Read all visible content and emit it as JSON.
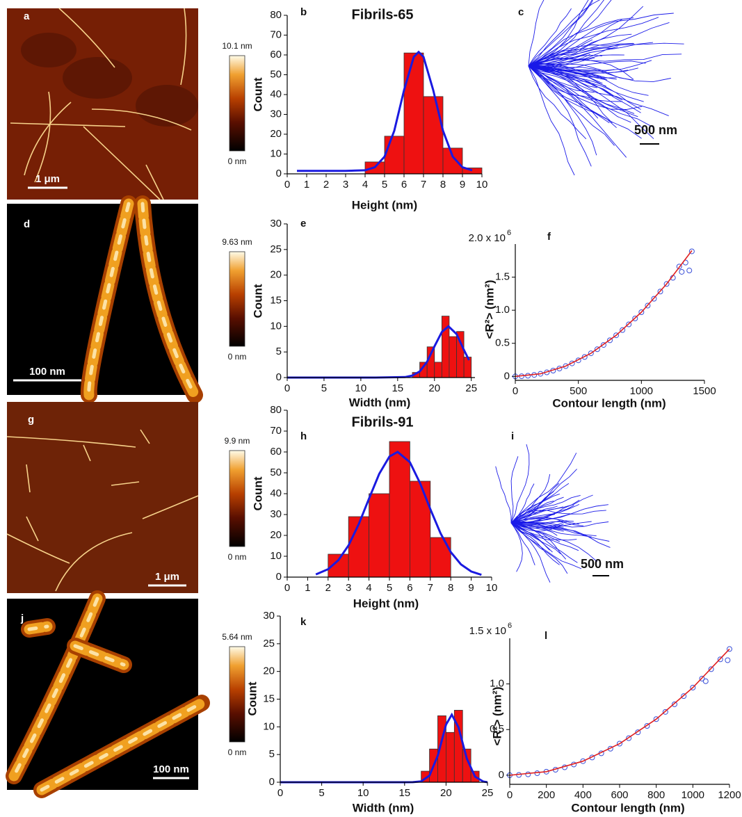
{
  "images": [
    {
      "label": "a",
      "scale_bar": "1 μm",
      "colorbar_max": "10.1 nm",
      "colorbar_min": "0 nm"
    },
    {
      "label": "d",
      "scale_bar": "100 nm",
      "colorbar_max": "9.63 nm",
      "colorbar_min": "0 nm"
    },
    {
      "label": "g",
      "scale_bar": "1 μm",
      "colorbar_max": "9.9 nm",
      "colorbar_min": "0 nm"
    },
    {
      "label": "j",
      "scale_bar": "100 nm",
      "colorbar_max": "5.64 nm",
      "colorbar_min": "0 nm"
    }
  ],
  "traces": [
    {
      "label": "c",
      "scale_bar": "500 nm"
    },
    {
      "label": "i",
      "scale_bar": "500 nm"
    }
  ],
  "chart_data": [
    {
      "type": "histogram",
      "panel_label": "b",
      "title": "Fibrils-65",
      "x_label": "Height (nm)",
      "y_label": "Count",
      "bins": [
        4,
        5,
        6,
        7,
        8,
        9,
        10
      ],
      "values": [
        6,
        19,
        61,
        39,
        13,
        3
      ],
      "color": "#ee1111",
      "fit": {
        "color": "#1a1ae0",
        "x": [
          0.5,
          1,
          2,
          3,
          4,
          4.5,
          5,
          5.5,
          6,
          6.5,
          6.75,
          7,
          7.5,
          8,
          8.5,
          9,
          9.5
        ],
        "values": [
          1.5,
          1.5,
          1.5,
          1.5,
          1.8,
          3.3,
          8.7,
          21.8,
          42.2,
          59,
          61.5,
          59,
          42.2,
          21.8,
          8.7,
          3.3,
          1.8
        ]
      },
      "xlim": [
        0,
        10
      ],
      "xticks": [
        0,
        1,
        2,
        3,
        4,
        5,
        6,
        7,
        8,
        9,
        10
      ],
      "ylim": [
        0,
        80
      ],
      "yticks": [
        0,
        10,
        20,
        30,
        40,
        50,
        60,
        70,
        80
      ]
    },
    {
      "type": "histogram",
      "panel_label": "e",
      "x_label": "Width (nm)",
      "y_label": "Count",
      "bins": [
        17,
        18,
        19,
        20,
        21,
        22,
        23,
        24,
        25
      ],
      "values": [
        1,
        3,
        6,
        3,
        12,
        8,
        9,
        4
      ],
      "color": "#ee1111",
      "fit": {
        "color": "#1a1ae0",
        "x": [
          0,
          4,
          8,
          12,
          16,
          17,
          18,
          19,
          20,
          21,
          21.9,
          23,
          24,
          24.7
        ],
        "values": [
          0,
          0,
          0,
          0,
          0.1,
          0.4,
          1.2,
          3.1,
          6.1,
          8.9,
          10,
          8.5,
          5.4,
          3.4
        ]
      },
      "xlim": [
        0,
        25.5
      ],
      "xticks": [
        0,
        5,
        10,
        15,
        20,
        25
      ],
      "ylim": [
        0,
        30
      ],
      "yticks": [
        0,
        5,
        10,
        15,
        20,
        25,
        30
      ]
    },
    {
      "type": "scatter",
      "panel_label": "f",
      "x_label": "Contour length (nm)",
      "y_label": "<R²> (nm²)",
      "y_scale_label": "2.0 x 10",
      "y_scale_exponent": "6",
      "points": {
        "color": "#3a4fd8",
        "x": [
          0,
          50,
          100,
          150,
          200,
          250,
          300,
          350,
          400,
          450,
          500,
          550,
          600,
          650,
          700,
          750,
          800,
          850,
          900,
          950,
          1000,
          1050,
          1100,
          1150,
          1200,
          1250,
          1300,
          1350,
          1400,
          1320,
          1380
        ],
        "values": [
          0,
          2400,
          9700,
          21800,
          38800,
          60600,
          87300,
          118800,
          155200,
          196400,
          242500,
          293400,
          349200,
          409800,
          475300,
          545600,
          620800,
          700800,
          785700,
          875400,
          970000,
          1069400,
          1173700,
          1282800,
          1396800,
          1490000,
          1660000,
          1720000,
          1890000,
          1580000,
          1600000
        ]
      },
      "fit": {
        "color": "#e02020",
        "x": [
          0,
          200,
          400,
          600,
          800,
          1000,
          1200,
          1400
        ],
        "values": [
          0,
          38800,
          155200,
          349200,
          620800,
          970000,
          1396800,
          1901200
        ]
      },
      "xlim": [
        0,
        1500
      ],
      "xticks": [
        0,
        500,
        1000,
        1500
      ],
      "ylim": [
        -60000,
        2000000
      ],
      "yticks": [
        {
          "value": 0,
          "label": "0"
        },
        {
          "value": 500000,
          "label": "0.5"
        },
        {
          "value": 1000000,
          "label": "1.0"
        },
        {
          "value": 1500000,
          "label": "1.5"
        }
      ]
    },
    {
      "type": "histogram",
      "panel_label": "h",
      "title": "Fibrils-91",
      "x_label": "Height (nm)",
      "y_label": "Count",
      "bins": [
        2,
        3,
        4,
        5,
        6,
        7,
        8
      ],
      "values": [
        11,
        29,
        40,
        65,
        46,
        19
      ],
      "color": "#ee1111",
      "fit": {
        "color": "#1a1ae0",
        "x": [
          1.4,
          2,
          2.5,
          3,
          3.5,
          4,
          4.5,
          5,
          5.4,
          6,
          6.5,
          7,
          7.5,
          8,
          8.5,
          9,
          9.5
        ],
        "values": [
          1.3,
          3.8,
          8.1,
          15.2,
          25.4,
          37.6,
          49.5,
          57.8,
          60,
          55.1,
          45,
          32.6,
          21,
          12,
          6.1,
          2.7,
          1.1
        ]
      },
      "xlim": [
        0,
        10
      ],
      "xticks": [
        0,
        1,
        2,
        3,
        4,
        5,
        6,
        7,
        8,
        9,
        10
      ],
      "ylim": [
        0,
        80
      ],
      "yticks": [
        0,
        10,
        20,
        30,
        40,
        50,
        60,
        70,
        80
      ]
    },
    {
      "type": "histogram",
      "panel_label": "k",
      "x_label": "Width (nm)",
      "y_label": "Count",
      "bins": [
        17,
        18,
        19,
        20,
        21,
        22,
        23,
        24
      ],
      "values": [
        2,
        6,
        12,
        9,
        13,
        6,
        2
      ],
      "color": "#ee1111",
      "fit": {
        "color": "#1a1ae0",
        "x": [
          0,
          5,
          10,
          15,
          16,
          17,
          18,
          19,
          20,
          20.7,
          21.5,
          22.5,
          23.5,
          24.5,
          25
        ],
        "values": [
          0,
          0,
          0,
          0,
          0.01,
          0.15,
          1.2,
          4.8,
          10.4,
          12.2,
          9.9,
          4.3,
          1,
          0.12,
          0
        ]
      },
      "xlim": [
        0,
        25
      ],
      "xticks": [
        0,
        5,
        10,
        15,
        20,
        25
      ],
      "ylim": [
        0,
        30
      ],
      "yticks": [
        0,
        5,
        10,
        15,
        20,
        25,
        30
      ]
    },
    {
      "type": "scatter",
      "panel_label": "l",
      "x_label": "Contour length (nm)",
      "y_label": "<R²> (nm²)",
      "y_scale_label": "1.5 x 10",
      "y_scale_exponent": "6",
      "points": {
        "color": "#3a4fd8",
        "x": [
          0,
          50,
          100,
          150,
          200,
          250,
          300,
          350,
          400,
          450,
          500,
          550,
          600,
          650,
          700,
          750,
          800,
          850,
          900,
          950,
          1000,
          1050,
          1100,
          1150,
          1200,
          1190,
          1070
        ],
        "values": [
          0,
          2400,
          9600,
          21600,
          38400,
          60000,
          86400,
          117600,
          153600,
          194400,
          240000,
          290400,
          345600,
          405600,
          470400,
          540000,
          614400,
          693600,
          777600,
          866400,
          960000,
          1058400,
          1161600,
          1269600,
          1382400,
          1260000,
          1030000
        ]
      },
      "fit": {
        "color": "#e02020",
        "x": [
          0,
          200,
          400,
          600,
          800,
          1000,
          1200
        ],
        "values": [
          0,
          38400,
          153600,
          345600,
          614400,
          960000,
          1382400
        ]
      },
      "xlim": [
        0,
        1200
      ],
      "xticks": [
        0,
        200,
        400,
        600,
        800,
        1000,
        1200
      ],
      "ylim": [
        -100000,
        1500000
      ],
      "yticks": [
        {
          "value": 0,
          "label": "0"
        },
        {
          "value": 500000,
          "label": "0.5"
        },
        {
          "value": 1000000,
          "label": "1.0"
        }
      ]
    }
  ]
}
